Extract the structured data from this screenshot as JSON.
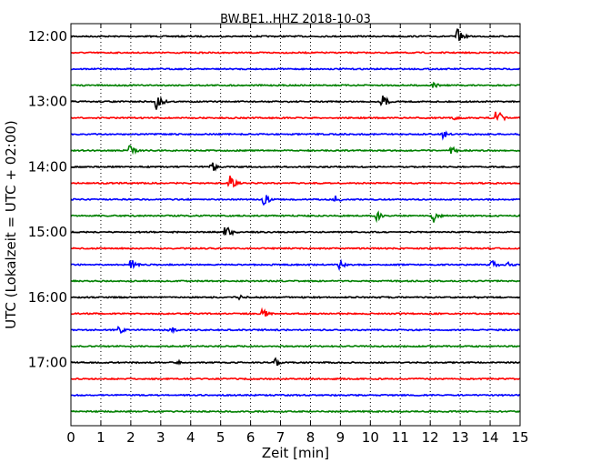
{
  "chart_data": {
    "type": "line",
    "title": "BW.BE1..HHZ 2018-10-03",
    "xlabel": "Zeit  [min]",
    "ylabel": "UTC (Lokalzeit = UTC + 02:00)",
    "xlim": [
      0,
      15
    ],
    "x_ticks": [
      "0",
      "1",
      "2",
      "3",
      "4",
      "5",
      "6",
      "7",
      "8",
      "9",
      "10",
      "11",
      "12",
      "13",
      "14",
      "15"
    ],
    "y_ticks": [
      "12:00",
      "13:00",
      "14:00",
      "15:00",
      "16:00",
      "17:00"
    ],
    "grid": "vertical-dotted",
    "trace_colors": [
      "#000000",
      "#ff0000",
      "#0000ff",
      "#008000"
    ],
    "traces": [
      {
        "start": "12:00",
        "events": [
          {
            "t": 12.9,
            "amp": 9
          }
        ]
      },
      {
        "start": "12:15",
        "events": []
      },
      {
        "start": "12:30",
        "events": []
      },
      {
        "start": "12:45",
        "events": [
          {
            "t": 12.1,
            "amp": 4
          }
        ]
      },
      {
        "start": "13:00",
        "events": [
          {
            "t": 2.85,
            "amp": 11
          },
          {
            "t": 10.4,
            "amp": 8
          }
        ]
      },
      {
        "start": "13:15",
        "events": [
          {
            "t": 14.2,
            "amp": 12
          },
          {
            "t": 12.8,
            "amp": 3
          }
        ]
      },
      {
        "start": "13:30",
        "events": [
          {
            "t": 12.4,
            "amp": 6
          }
        ]
      },
      {
        "start": "13:45",
        "events": [
          {
            "t": 1.95,
            "amp": 7
          },
          {
            "t": 12.7,
            "amp": 5
          }
        ]
      },
      {
        "start": "14:00",
        "events": [
          {
            "t": 4.7,
            "amp": 7
          }
        ]
      },
      {
        "start": "14:15",
        "events": [
          {
            "t": 5.3,
            "amp": 9
          }
        ]
      },
      {
        "start": "14:30",
        "events": [
          {
            "t": 6.45,
            "amp": 8
          },
          {
            "t": 8.8,
            "amp": 6
          }
        ]
      },
      {
        "start": "14:45",
        "events": [
          {
            "t": 10.2,
            "amp": 6
          },
          {
            "t": 12.1,
            "amp": 8
          }
        ]
      },
      {
        "start": "15:00",
        "events": [
          {
            "t": 5.15,
            "amp": 11
          }
        ]
      },
      {
        "start": "15:15",
        "events": []
      },
      {
        "start": "15:30",
        "events": [
          {
            "t": 2.0,
            "amp": 7
          },
          {
            "t": 8.95,
            "amp": 6
          },
          {
            "t": 14.05,
            "amp": 6
          },
          {
            "t": 14.6,
            "amp": 4
          }
        ]
      },
      {
        "start": "15:45",
        "events": []
      },
      {
        "start": "16:00",
        "events": [
          {
            "t": 5.65,
            "amp": 4
          },
          {
            "t": 13.5,
            "amp": 2
          }
        ]
      },
      {
        "start": "16:15",
        "events": [
          {
            "t": 6.4,
            "amp": 6
          }
        ]
      },
      {
        "start": "16:30",
        "events": [
          {
            "t": 1.6,
            "amp": 5
          },
          {
            "t": 3.3,
            "amp": 5
          }
        ]
      },
      {
        "start": "16:45",
        "events": []
      },
      {
        "start": "17:00",
        "events": [
          {
            "t": 3.55,
            "amp": 3
          },
          {
            "t": 6.8,
            "amp": 6
          }
        ]
      },
      {
        "start": "17:15",
        "events": []
      },
      {
        "start": "17:30",
        "events": []
      },
      {
        "start": "17:45",
        "events": []
      }
    ]
  }
}
